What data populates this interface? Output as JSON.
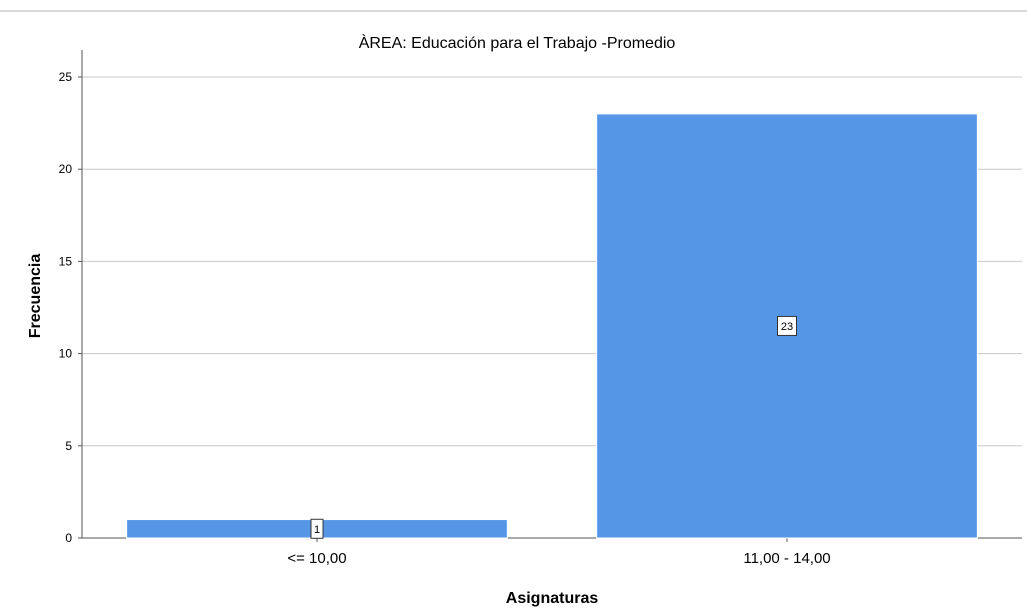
{
  "chart_data": {
    "type": "bar",
    "title": "ÀREA: Educación para el Trabajo -Promedio",
    "xlabel": "Asignaturas",
    "ylabel": "Frecuencia",
    "categories": [
      "<= 10,00",
      "11,00 - 14,00"
    ],
    "values": [
      1,
      23
    ],
    "data_labels": [
      "1",
      "23"
    ],
    "ylim": [
      0,
      25
    ],
    "yticks": [
      0,
      5,
      10,
      15,
      20,
      25
    ],
    "grid": true,
    "legend": "none",
    "colors": {
      "bar": "#5596e6",
      "bar_border": "#ffffff",
      "grid": "#c8c8c8",
      "axis": "#555555",
      "background": "#ffffff"
    }
  }
}
